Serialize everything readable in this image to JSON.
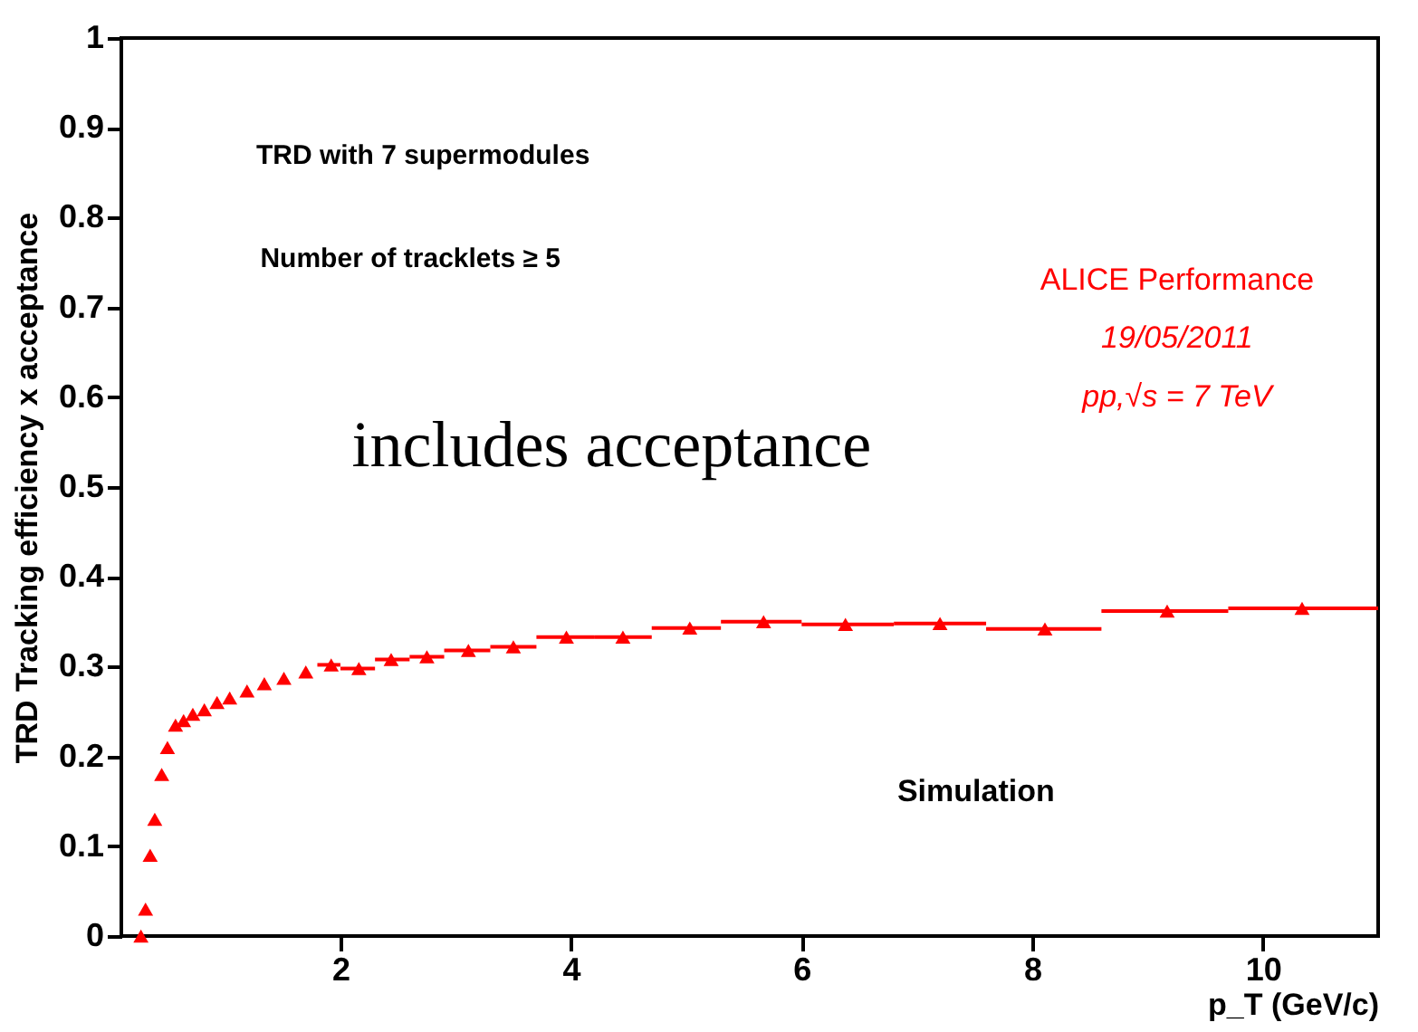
{
  "chart_data": {
    "type": "scatter",
    "xlabel": "p_T (GeV/c)",
    "ylabel": "TRD Tracking efficiency x acceptance",
    "x": [
      0.27,
      0.31,
      0.35,
      0.39,
      0.45,
      0.5,
      0.57,
      0.64,
      0.72,
      0.82,
      0.93,
      1.04,
      1.19,
      1.34,
      1.51,
      1.7,
      1.92,
      2.16,
      2.44,
      2.75,
      3.11,
      3.5,
      3.96,
      4.45,
      5.03,
      5.67,
      6.38,
      7.2,
      8.11,
      9.17,
      10.34
    ],
    "series": [
      {
        "color": "#ff0000",
        "values": [
          0.0,
          0.03,
          0.09,
          0.13,
          0.18,
          0.21,
          0.235,
          0.24,
          0.247,
          0.252,
          0.26,
          0.265,
          0.273,
          0.281,
          0.287,
          0.294,
          0.302,
          0.298,
          0.308,
          0.311,
          0.318,
          0.322,
          0.333,
          0.333,
          0.343,
          0.35,
          0.347,
          0.348,
          0.342,
          0.362,
          0.365
        ],
        "xerrors": [
          null,
          null,
          null,
          null,
          null,
          null,
          null,
          null,
          null,
          null,
          null,
          null,
          null,
          null,
          null,
          null,
          [
            1.8,
            2.0
          ],
          [
            2.0,
            2.3
          ],
          [
            2.3,
            2.6
          ],
          [
            2.6,
            2.9
          ],
          [
            2.9,
            3.3
          ],
          [
            3.3,
            3.7
          ],
          [
            3.7,
            4.2
          ],
          [
            4.2,
            4.7
          ],
          [
            4.7,
            5.3
          ],
          [
            5.3,
            6.0
          ],
          [
            6.0,
            6.8
          ],
          [
            6.8,
            7.6
          ],
          [
            7.6,
            8.6
          ],
          [
            8.6,
            9.7
          ],
          [
            9.7,
            11.0
          ]
        ]
      }
    ],
    "xlim": [
      0.1,
      11
    ],
    "ylim": [
      0,
      1
    ],
    "xticks": [
      2,
      4,
      6,
      8,
      10
    ],
    "yticks": [
      0,
      0.1,
      0.2,
      0.3,
      0.4,
      0.5,
      0.6,
      0.7,
      0.8,
      0.9,
      1
    ],
    "marker": "triangle",
    "grid": false,
    "annotations": [
      "TRD with 7 supermodules",
      "Number of tracklets ≥ 5",
      "ALICE Performance",
      "19/05/2011",
      "pp,√s = 7 TeV",
      "includes acceptance",
      "Simulation"
    ]
  }
}
